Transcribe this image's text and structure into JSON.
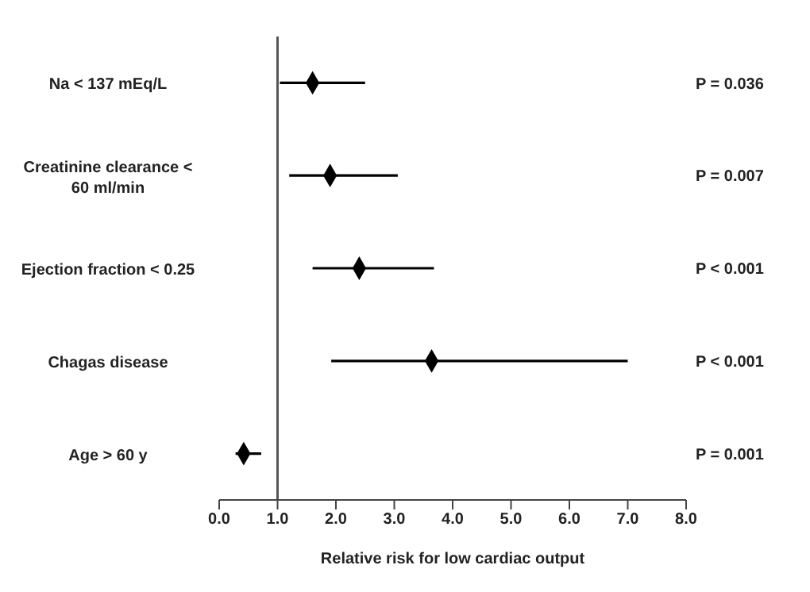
{
  "chart_data": {
    "type": "scatter",
    "xlabel": "Relative risk for low cardiac output",
    "categories": [
      "Na < 137 mEq/L",
      "Creatinine clearance < 60 ml/min",
      "Ejection fraction < 0.25",
      "Chagas disease",
      "Age > 60 y"
    ],
    "values": [
      1.6,
      1.9,
      2.4,
      3.64,
      0.42
    ],
    "errors": [
      [
        1.04,
        2.5
      ],
      [
        1.2,
        3.06
      ],
      [
        1.6,
        3.68
      ],
      [
        1.92,
        7.0
      ],
      [
        0.28,
        0.72
      ]
    ],
    "color": "#000000",
    "marker": "diamond",
    "orientation": "horizontal",
    "xlim": [
      0,
      8
    ],
    "xticks": [
      {
        "value": 0,
        "label": "0.0"
      },
      {
        "value": 1,
        "label": "1.0"
      },
      {
        "value": 2,
        "label": "2.0"
      },
      {
        "value": 3,
        "label": "3.0"
      },
      {
        "value": 4,
        "label": "4.0"
      },
      {
        "value": 5,
        "label": "5.0"
      },
      {
        "value": 6,
        "label": "6.0"
      },
      {
        "value": 7,
        "label": "7.0"
      },
      {
        "value": 8,
        "label": "8.0"
      }
    ],
    "ref_lines": [
      {
        "axis": "x",
        "value": 1,
        "color": "#555555"
      }
    ],
    "annotations": [
      "P = 0.036",
      "P = 0.007",
      "P < 0.001",
      "P < 0.001",
      "P = 0.001"
    ],
    "grid": false,
    "legend": false
  }
}
